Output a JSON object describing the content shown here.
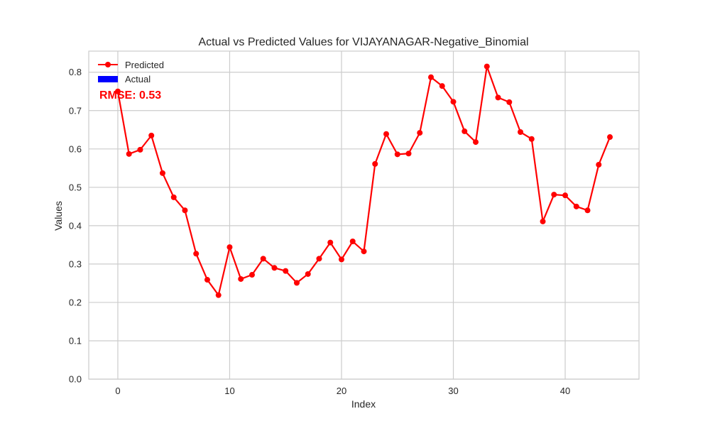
{
  "chart_data": {
    "type": "line",
    "title": "Actual vs Predicted Values for VIJAYANAGAR-Negative_Binomial",
    "xlabel": "Index",
    "ylabel": "Values",
    "xlim": [
      -2.6,
      46.6
    ],
    "ylim": [
      0.0,
      0.855
    ],
    "xticks": [
      0,
      10,
      20,
      30,
      40
    ],
    "yticks": [
      0.0,
      0.1,
      0.2,
      0.3,
      0.4,
      0.5,
      0.6,
      0.7,
      0.8
    ],
    "xtick_labels": [
      "0",
      "10",
      "20",
      "30",
      "40"
    ],
    "ytick_labels": [
      "0.0",
      "0.1",
      "0.2",
      "0.3",
      "0.4",
      "0.5",
      "0.6",
      "0.7",
      "0.8"
    ],
    "grid": true,
    "legend_position": "top-left",
    "series": [
      {
        "name": "Predicted",
        "color": "#ff0000",
        "marker": "circle",
        "x": [
          0,
          1,
          2,
          3,
          4,
          5,
          6,
          7,
          8,
          9,
          10,
          11,
          12,
          13,
          14,
          15,
          16,
          17,
          18,
          19,
          20,
          21,
          22,
          23,
          24,
          25,
          26,
          27,
          28,
          29,
          30,
          31,
          32,
          33,
          34,
          35,
          36,
          37,
          38,
          39,
          40,
          41,
          42,
          43,
          44
        ],
        "values": [
          0.75,
          0.587,
          0.598,
          0.635,
          0.537,
          0.474,
          0.44,
          0.327,
          0.259,
          0.219,
          0.344,
          0.261,
          0.272,
          0.314,
          0.29,
          0.282,
          0.251,
          0.274,
          0.314,
          0.356,
          0.312,
          0.359,
          0.333,
          0.561,
          0.639,
          0.586,
          0.588,
          0.642,
          0.787,
          0.764,
          0.723,
          0.646,
          0.618,
          0.815,
          0.734,
          0.722,
          0.644,
          0.626,
          0.411,
          0.481,
          0.479,
          0.45,
          0.44,
          0.559,
          0.631
        ]
      },
      {
        "name": "Actual",
        "color": "#0000ff",
        "marker": "bar",
        "x": [],
        "values": []
      }
    ],
    "annotation": {
      "text": "RMSE: 0.53",
      "color": "#ff0000"
    }
  }
}
